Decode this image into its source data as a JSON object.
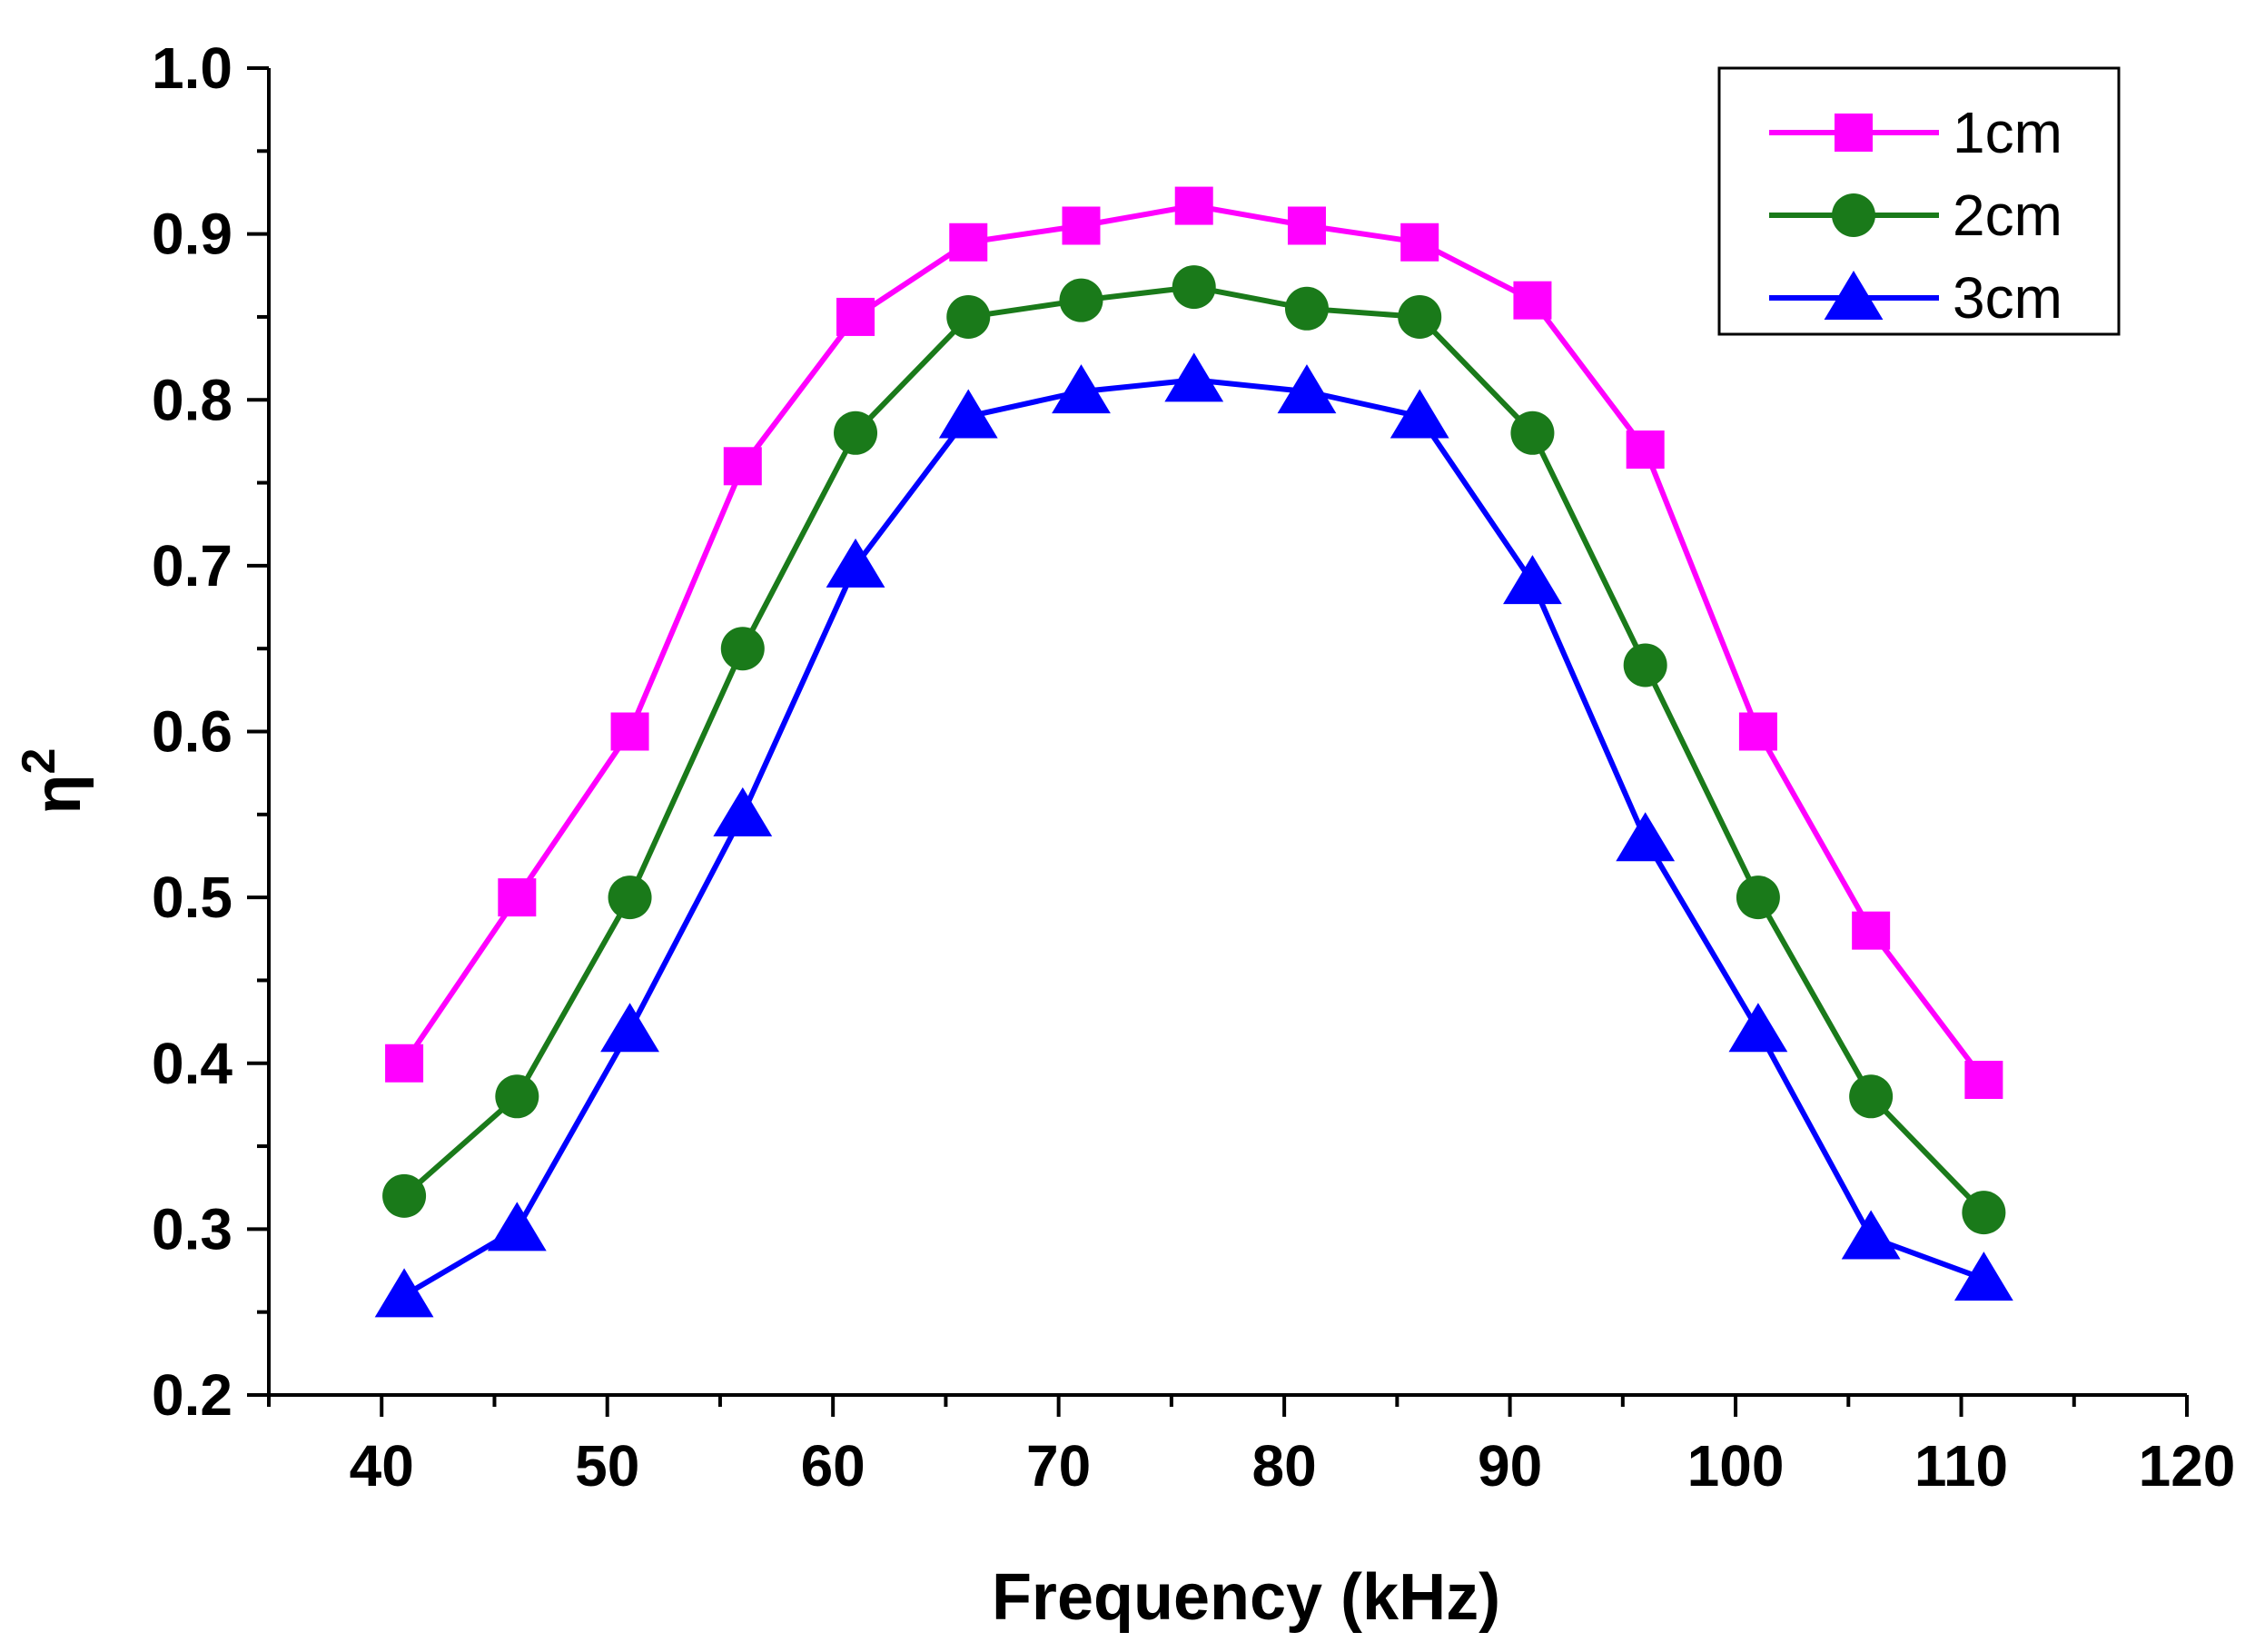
{
  "chart_data": {
    "type": "line",
    "title": "",
    "xlabel": "Frequency (kHz)",
    "ylabel": "η",
    "ylabel_superscript": "2",
    "xlim": [
      35,
      120
    ],
    "ylim": [
      0.2,
      1.0
    ],
    "xticks": [
      40,
      50,
      60,
      70,
      80,
      90,
      100,
      110,
      120
    ],
    "xtick_labels": [
      "40",
      "50",
      "60",
      "70",
      "80",
      "90",
      "100",
      "110",
      "120"
    ],
    "yticks": [
      0.2,
      0.3,
      0.4,
      0.5,
      0.6,
      0.7,
      0.8,
      0.9,
      1.0
    ],
    "ytick_labels": [
      "0.2",
      "0.3",
      "0.4",
      "0.5",
      "0.6",
      "0.7",
      "0.8",
      "0.9",
      "1.0"
    ],
    "grid": false,
    "legend_position": "top-right",
    "x": [
      41,
      46,
      51,
      56,
      61,
      66,
      71,
      76,
      81,
      86,
      91,
      96,
      101,
      106,
      111
    ],
    "series": [
      {
        "name": "1cm",
        "color": "#ff00ff",
        "marker": "square",
        "values": [
          0.4,
          0.5,
          0.6,
          0.76,
          0.85,
          0.895,
          0.905,
          0.917,
          0.905,
          0.895,
          0.86,
          0.77,
          0.6,
          0.48,
          0.39
        ]
      },
      {
        "name": "2cm",
        "color": "#1a7a1a",
        "marker": "circle",
        "values": [
          0.32,
          0.38,
          0.5,
          0.65,
          0.78,
          0.85,
          0.86,
          0.868,
          0.855,
          0.85,
          0.78,
          0.64,
          0.5,
          0.38,
          0.31
        ]
      },
      {
        "name": "3cm",
        "color": "#0000ff",
        "marker": "triangle",
        "values": [
          0.26,
          0.3,
          0.42,
          0.55,
          0.7,
          0.79,
          0.805,
          0.812,
          0.805,
          0.79,
          0.69,
          0.535,
          0.42,
          0.295,
          0.27
        ]
      }
    ]
  }
}
